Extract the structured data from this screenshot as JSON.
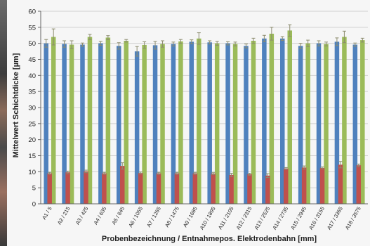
{
  "chart_data": {
    "type": "bar",
    "title": "",
    "xlabel": "Probenbezeichnung / Entnahmepos. Elektrodenbahn [mm]",
    "ylabel": "Mittelwert Schichtdicke [µm]",
    "ylim": [
      0,
      60
    ],
    "yticks": [
      0,
      5,
      10,
      15,
      20,
      25,
      30,
      35,
      40,
      45,
      50,
      55,
      60
    ],
    "grid": true,
    "legend": "none",
    "categories": [
      "A1 / 5",
      "A2 / 215",
      "A3 / 425",
      "A4 / 635",
      "A5 / 845",
      "A6 / 1055",
      "A7 / 1265",
      "A8 / 1475",
      "A9 / 1685",
      "A10 / 1895",
      "A11 / 2105",
      "A12 / 2315",
      "A13 / 2525",
      "A14 / 2735",
      "A15 / 2945",
      "A16 / 3155",
      "A17 / 3365",
      "A18 / 3575"
    ],
    "series": [
      {
        "color": "#4f81bd",
        "values": [
          50,
          49.8,
          49.6,
          50,
          49.2,
          47.5,
          49.4,
          49.8,
          50.5,
          50.3,
          50,
          49.2,
          51.5,
          51.5,
          49.2,
          50,
          50.5,
          49.6
        ],
        "errors": [
          1.2,
          1.0,
          0.5,
          0.6,
          1.0,
          1.5,
          1.2,
          0.6,
          0.6,
          0.5,
          0.5,
          0.6,
          1.0,
          0.6,
          0.8,
          0.8,
          1.2,
          0.5
        ]
      },
      {
        "color": "#9bbb59",
        "values": [
          52,
          49.6,
          52,
          51.8,
          50.8,
          49.5,
          49.8,
          50.6,
          51.5,
          50,
          49.8,
          50.8,
          53,
          54,
          50,
          49.8,
          52,
          51
        ],
        "errors": [
          2.5,
          1.2,
          0.8,
          0.6,
          0.4,
          1.0,
          1.0,
          0.6,
          1.8,
          0.6,
          0.6,
          0.8,
          2.0,
          1.8,
          1.0,
          0.6,
          1.8,
          0.6
        ]
      },
      {
        "color": "#c0504d",
        "values": [
          9.5,
          9.8,
          10.1,
          9.5,
          11.8,
          9.6,
          9.5,
          9.5,
          9.5,
          9.4,
          9,
          9.2,
          8.8,
          11,
          11.3,
          11.2,
          12.2,
          12
        ],
        "errors": [
          0.3,
          0.4,
          0.4,
          0.3,
          1.0,
          0.3,
          0.3,
          0.3,
          0.3,
          0.3,
          0.5,
          0.3,
          0.6,
          0.3,
          0.5,
          0.3,
          1.0,
          0.4
        ]
      }
    ],
    "error_bar_color": "#8c8c6e"
  },
  "colors": {
    "grid": "#d0d0d0",
    "axis": "#666666",
    "text": "#222222"
  }
}
